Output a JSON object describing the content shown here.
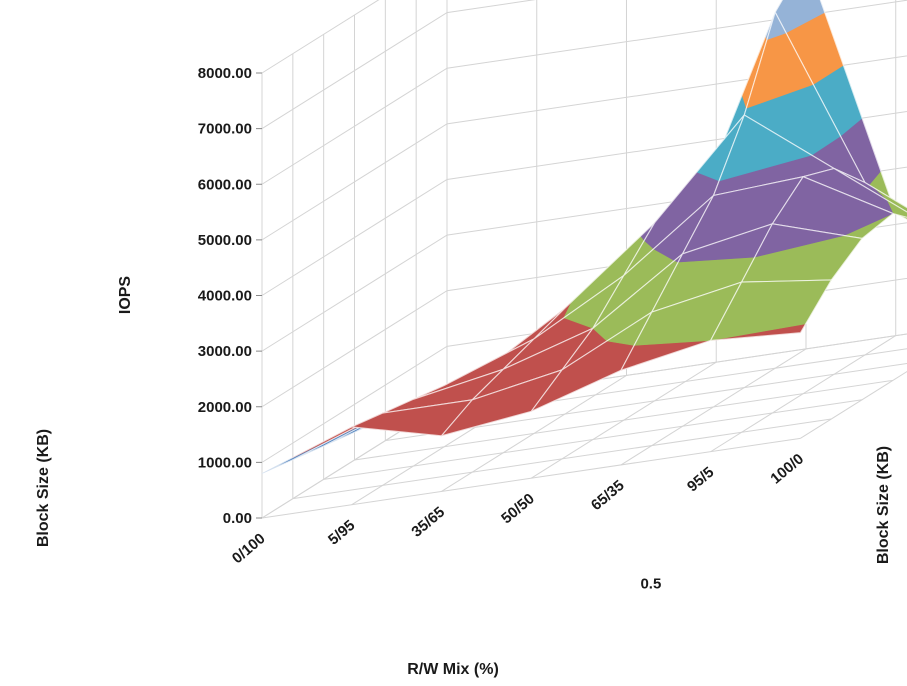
{
  "chart_data": {
    "type": "surface3d",
    "title": "",
    "xlabel": "R/W Mix (%)",
    "ylabel": "IOPS",
    "zlabel": "Block Size (KB)",
    "z_tick_label": "0.5",
    "y_ticks": [
      "0.00",
      "1000.00",
      "2000.00",
      "3000.00",
      "4000.00",
      "5000.00",
      "6000.00",
      "7000.00",
      "8000.00"
    ],
    "ylim": [
      0,
      8000
    ],
    "categories": [
      "0/100",
      "5/95",
      "35/65",
      "50/50",
      "65/35",
      "95/5",
      "100/0"
    ],
    "depth_rows": 7,
    "band_step": 1000,
    "values": [
      [
        800,
        1400,
        1000,
        1200,
        1700,
        2000,
        1900
      ],
      [
        700,
        1300,
        1300,
        1600,
        2400,
        2700,
        2500
      ],
      [
        600,
        1200,
        1500,
        2000,
        3100,
        3400,
        2900
      ],
      [
        500,
        1100,
        1700,
        2600,
        3800,
        3900,
        3000
      ],
      [
        400,
        900,
        1900,
        3200,
        4900,
        3700,
        2500
      ],
      [
        300,
        700,
        1700,
        2600,
        6400,
        3100,
        1900
      ],
      [
        200,
        500,
        1300,
        1900,
        7000,
        2200,
        1100
      ]
    ],
    "band_colors": [
      "#4f81bd",
      "#c0504d",
      "#9bbb59",
      "#8064a2",
      "#4bacc6",
      "#f79646",
      "#95b3d7",
      "#d99694"
    ],
    "grid": true,
    "legend": "none"
  }
}
